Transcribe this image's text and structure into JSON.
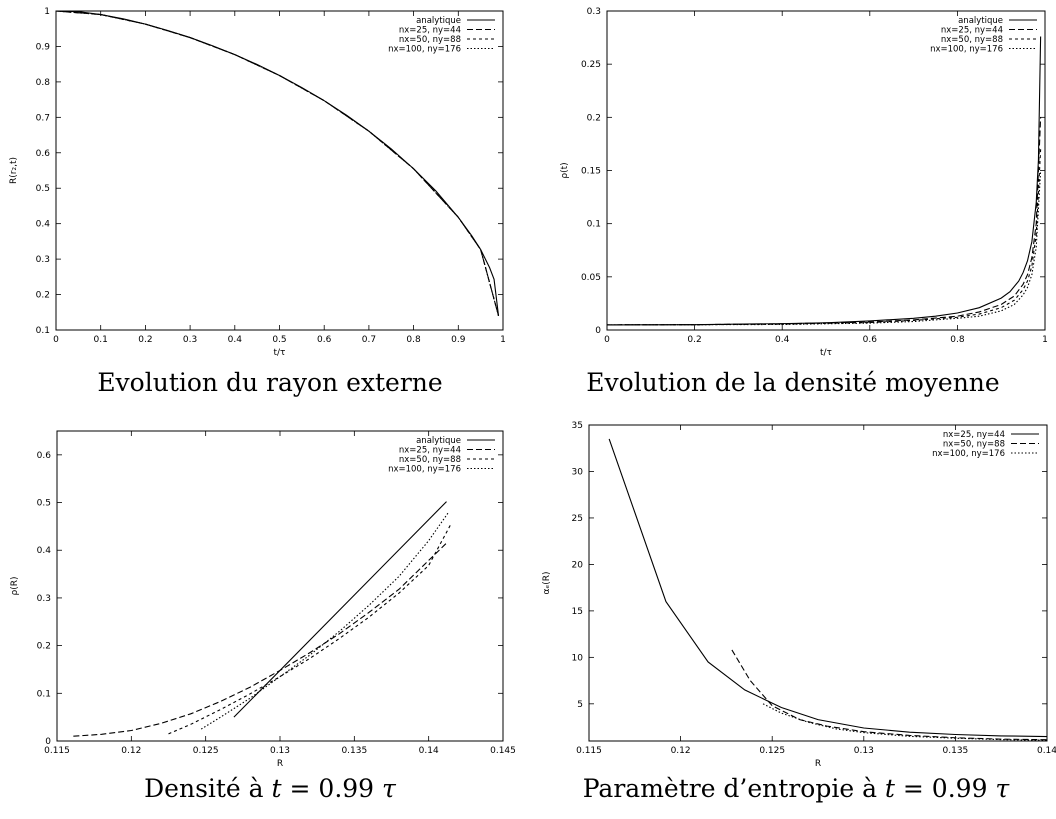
{
  "captions": {
    "c1": "Evolution du rayon externe",
    "c2": "Evolution de la densité moyenne",
    "c3_pre": "Densité à ",
    "c3_var": "t",
    "c3_post": " = 0.99 ",
    "c3_tau": "τ",
    "c4_pre": "Paramètre d’entropie à ",
    "c4_var": "t",
    "c4_post": " = 0.99 ",
    "c4_tau": "τ"
  },
  "chart_data": [
    {
      "type": "line",
      "xlabel": "t/τ",
      "ylabel": "R(r₂,t)",
      "xlim": [
        0,
        1
      ],
      "ylim": [
        0.1,
        1
      ],
      "xticks": [
        "0",
        "0.1",
        "0.2",
        "0.3",
        "0.4",
        "0.5",
        "0.6",
        "0.7",
        "0.8",
        "0.9",
        "1"
      ],
      "yticks": [
        "0.1",
        "0.2",
        "0.3",
        "0.4",
        "0.5",
        "0.6",
        "0.7",
        "0.8",
        "0.9",
        "1"
      ],
      "legend_position": "top-right",
      "series": [
        {
          "name": "analytique",
          "dash": "solid",
          "x": [
            0,
            0.05,
            0.1,
            0.15,
            0.2,
            0.25,
            0.3,
            0.35,
            0.4,
            0.45,
            0.5,
            0.55,
            0.6,
            0.65,
            0.7,
            0.75,
            0.8,
            0.85,
            0.9,
            0.93,
            0.95,
            0.97,
            0.98,
            0.99
          ],
          "y": [
            1,
            0.998,
            0.99,
            0.978,
            0.963,
            0.945,
            0.925,
            0.902,
            0.877,
            0.849,
            0.818,
            0.784,
            0.747,
            0.706,
            0.661,
            0.611,
            0.555,
            0.492,
            0.418,
            0.366,
            0.327,
            0.276,
            0.243,
            0.14
          ]
        },
        {
          "name": "nx=25, ny=44",
          "dash": "dashed",
          "x": [
            0,
            0.1,
            0.2,
            0.3,
            0.4,
            0.5,
            0.6,
            0.7,
            0.8,
            0.9,
            0.95,
            0.99
          ],
          "y": [
            1,
            0.99,
            0.963,
            0.925,
            0.877,
            0.818,
            0.747,
            0.661,
            0.555,
            0.418,
            0.327,
            0.14
          ]
        },
        {
          "name": "nx=50, ny=88",
          "dash": "short-dashed",
          "x": [
            0,
            0.1,
            0.2,
            0.3,
            0.4,
            0.5,
            0.6,
            0.7,
            0.8,
            0.9,
            0.95,
            0.99
          ],
          "y": [
            1,
            0.99,
            0.963,
            0.925,
            0.877,
            0.818,
            0.747,
            0.661,
            0.555,
            0.418,
            0.327,
            0.14
          ]
        },
        {
          "name": "nx=100, ny=176",
          "dash": "dotted",
          "x": [
            0,
            0.1,
            0.2,
            0.3,
            0.4,
            0.5,
            0.6,
            0.7,
            0.8,
            0.9,
            0.95,
            0.99
          ],
          "y": [
            1,
            0.99,
            0.963,
            0.925,
            0.877,
            0.818,
            0.747,
            0.661,
            0.555,
            0.418,
            0.327,
            0.14
          ]
        }
      ]
    },
    {
      "type": "line",
      "xlabel": "t/τ",
      "ylabel": "ρ(t)",
      "xlim": [
        0,
        1
      ],
      "ylim": [
        0,
        0.3
      ],
      "xticks": [
        "0",
        "0.2",
        "0.4",
        "0.6",
        "0.8",
        "1"
      ],
      "yticks": [
        "0",
        "0.05",
        "0.1",
        "0.15",
        "0.2",
        "0.25",
        "0.3"
      ],
      "legend_position": "top-right",
      "series": [
        {
          "name": "analytique",
          "dash": "solid",
          "x": [
            0,
            0.2,
            0.4,
            0.5,
            0.6,
            0.7,
            0.75,
            0.8,
            0.85,
            0.9,
            0.92,
            0.94,
            0.95,
            0.96,
            0.97,
            0.98,
            0.985,
            0.99
          ],
          "y": [
            0.0048,
            0.005,
            0.006,
            0.0068,
            0.0085,
            0.011,
            0.013,
            0.016,
            0.021,
            0.03,
            0.036,
            0.046,
            0.054,
            0.065,
            0.083,
            0.12,
            0.16,
            0.276
          ]
        },
        {
          "name": "nx=25, ny=44",
          "dash": "dashed",
          "x": [
            0,
            0.2,
            0.4,
            0.6,
            0.7,
            0.8,
            0.85,
            0.9,
            0.93,
            0.95,
            0.96,
            0.97,
            0.98,
            0.99
          ],
          "y": [
            0.0048,
            0.005,
            0.0058,
            0.0075,
            0.0095,
            0.013,
            0.017,
            0.024,
            0.032,
            0.043,
            0.052,
            0.068,
            0.1,
            0.2
          ]
        },
        {
          "name": "nx=50, ny=88",
          "dash": "short-dashed",
          "x": [
            0,
            0.2,
            0.4,
            0.6,
            0.7,
            0.8,
            0.85,
            0.9,
            0.93,
            0.95,
            0.96,
            0.97,
            0.98,
            0.99
          ],
          "y": [
            0.0048,
            0.005,
            0.0055,
            0.007,
            0.009,
            0.012,
            0.015,
            0.021,
            0.028,
            0.038,
            0.046,
            0.06,
            0.09,
            0.17
          ]
        },
        {
          "name": "nx=100, ny=176",
          "dash": "dotted",
          "x": [
            0,
            0.2,
            0.4,
            0.6,
            0.7,
            0.8,
            0.85,
            0.9,
            0.93,
            0.95,
            0.96,
            0.97,
            0.98,
            0.99
          ],
          "y": [
            0.0048,
            0.005,
            0.0052,
            0.0065,
            0.008,
            0.011,
            0.013,
            0.018,
            0.024,
            0.033,
            0.04,
            0.052,
            0.078,
            0.15
          ]
        }
      ]
    },
    {
      "type": "line",
      "xlabel": "R",
      "ylabel": "ρ(R)",
      "xlim": [
        0.115,
        0.145
      ],
      "ylim": [
        0,
        0.65
      ],
      "xticks": [
        "0.115",
        "0.12",
        "0.125",
        "0.13",
        "0.135",
        "0.14",
        "0.145"
      ],
      "yticks": [
        "0",
        "0.1",
        "0.2",
        "0.3",
        "0.4",
        "0.5",
        "0.6"
      ],
      "legend_position": "top-right",
      "series": [
        {
          "name": "analytique",
          "dash": "solid",
          "x": [
            0.1269,
            0.1412
          ],
          "y": [
            0.05,
            0.502
          ]
        },
        {
          "name": "nx=25, ny=44",
          "dash": "dashed",
          "x": [
            0.1161,
            0.118,
            0.12,
            0.122,
            0.124,
            0.126,
            0.128,
            0.13,
            0.132,
            0.134,
            0.136,
            0.138,
            0.1412
          ],
          "y": [
            0.01,
            0.014,
            0.022,
            0.037,
            0.057,
            0.083,
            0.113,
            0.148,
            0.185,
            0.225,
            0.27,
            0.318,
            0.415
          ]
        },
        {
          "name": "nx=50, ny=88",
          "dash": "short-dashed",
          "x": [
            0.1225,
            0.124,
            0.126,
            0.128,
            0.13,
            0.132,
            0.134,
            0.136,
            0.138,
            0.14,
            0.1415
          ],
          "y": [
            0.015,
            0.035,
            0.066,
            0.099,
            0.135,
            0.173,
            0.215,
            0.26,
            0.31,
            0.368,
            0.455
          ]
        },
        {
          "name": "nx=100, ny=176",
          "dash": "dotted",
          "x": [
            0.1247,
            0.126,
            0.128,
            0.13,
            0.132,
            0.134,
            0.136,
            0.138,
            0.14,
            0.1413
          ],
          "y": [
            0.025,
            0.05,
            0.09,
            0.135,
            0.18,
            0.23,
            0.285,
            0.345,
            0.42,
            0.478
          ]
        }
      ]
    },
    {
      "type": "line",
      "xlabel": "R",
      "ylabel": "αₑ(R)",
      "xlim": [
        0.115,
        0.14
      ],
      "ylim": [
        1,
        35
      ],
      "xticks": [
        "0.115",
        "0.12",
        "0.125",
        "0.13",
        "0.135",
        "0.14"
      ],
      "yticks": [
        "5",
        "10",
        "15",
        "20",
        "25",
        "30",
        "35"
      ],
      "legend_position": "top-right",
      "series": [
        {
          "name": "nx=25, ny=44",
          "dash": "solid",
          "x": [
            0.1161,
            0.1192,
            0.1215,
            0.1235,
            0.1255,
            0.1275,
            0.13,
            0.1325,
            0.135,
            0.1375,
            0.1412
          ],
          "y": [
            33.5,
            16,
            9.5,
            6.5,
            4.6,
            3.3,
            2.4,
            1.95,
            1.7,
            1.55,
            1.45
          ]
        },
        {
          "name": "nx=50, ny=88",
          "dash": "dashed",
          "x": [
            0.1228,
            0.1238,
            0.125,
            0.1265,
            0.128,
            0.13,
            0.1325,
            0.135,
            0.1375,
            0.1415
          ],
          "y": [
            10.8,
            7.5,
            4.8,
            3.3,
            2.6,
            2.0,
            1.6,
            1.35,
            1.2,
            1.1
          ]
        },
        {
          "name": "nx=100, ny=176",
          "dash": "dotted",
          "x": [
            0.1245,
            0.1255,
            0.127,
            0.1285,
            0.13,
            0.1325,
            0.135,
            0.1375,
            0.1413
          ],
          "y": [
            5.0,
            4.0,
            3.0,
            2.3,
            1.9,
            1.5,
            1.3,
            1.15,
            1.05
          ]
        }
      ]
    }
  ]
}
